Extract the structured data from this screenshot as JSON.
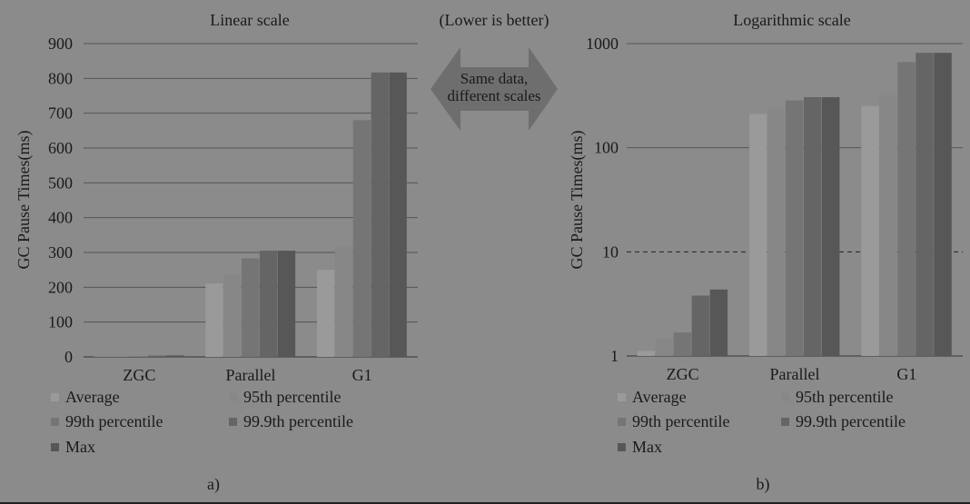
{
  "center_note": {
    "caption": "(Lower is better)",
    "arrow_text_line1": "Same data,",
    "arrow_text_line2": "different scales"
  },
  "legend_entries": [
    "Average",
    "95th percentile",
    "99th percentile",
    "99.9th percentile",
    "Max"
  ],
  "colors": {
    "background": "#8b8b8b",
    "arrow": "#6e6e6e",
    "series": [
      "#9a9a9a",
      "#878787",
      "#757575",
      "#656565",
      "#575757"
    ]
  },
  "chart_data": [
    {
      "type": "bar",
      "title": "Linear scale",
      "panel_label": "a)",
      "ylabel": "GC Pause Times(ms)",
      "xlabel": "",
      "scale": "linear",
      "ylim": [
        0,
        900
      ],
      "yticks": [
        0,
        100,
        200,
        300,
        400,
        500,
        600,
        700,
        800,
        900
      ],
      "ytick_labels": [
        "0",
        "100",
        "200",
        "300",
        "400",
        "500",
        "600",
        "700",
        "800",
        "900"
      ],
      "grid": true,
      "legend_position": "bottom",
      "categories": [
        "ZGC",
        "Parallel",
        "G1"
      ],
      "series": [
        {
          "name": "Average",
          "values": [
            1.1,
            211,
            250
          ]
        },
        {
          "name": "95th percentile",
          "values": [
            1.4,
            236,
            318
          ]
        },
        {
          "name": "99th percentile",
          "values": [
            1.7,
            283,
            680
          ]
        },
        {
          "name": "99.9th percentile",
          "values": [
            3.8,
            305,
            817
          ]
        },
        {
          "name": "Max",
          "values": [
            4.3,
            305,
            817
          ]
        }
      ]
    },
    {
      "type": "bar",
      "title": "Logarithmic scale",
      "panel_label": "b)",
      "ylabel": "GC Pause Times(ms)",
      "xlabel": "",
      "scale": "log",
      "ylim": [
        1,
        1000
      ],
      "yticks": [
        1,
        10,
        100,
        1000
      ],
      "ytick_labels": [
        "1",
        "10",
        "100",
        "1000"
      ],
      "dashed_reference_line": 10,
      "grid": true,
      "legend_position": "bottom",
      "categories": [
        "ZGC",
        "Parallel",
        "G1"
      ],
      "series": [
        {
          "name": "Average",
          "values": [
            1.12,
            211,
            252
          ]
        },
        {
          "name": "95th percentile",
          "values": [
            1.45,
            237,
            320
          ]
        },
        {
          "name": "99th percentile",
          "values": [
            1.68,
            284,
            665
          ]
        },
        {
          "name": "99.9th percentile",
          "values": [
            3.8,
            306,
            815
          ]
        },
        {
          "name": "Max",
          "values": [
            4.35,
            306,
            815
          ]
        }
      ]
    }
  ]
}
